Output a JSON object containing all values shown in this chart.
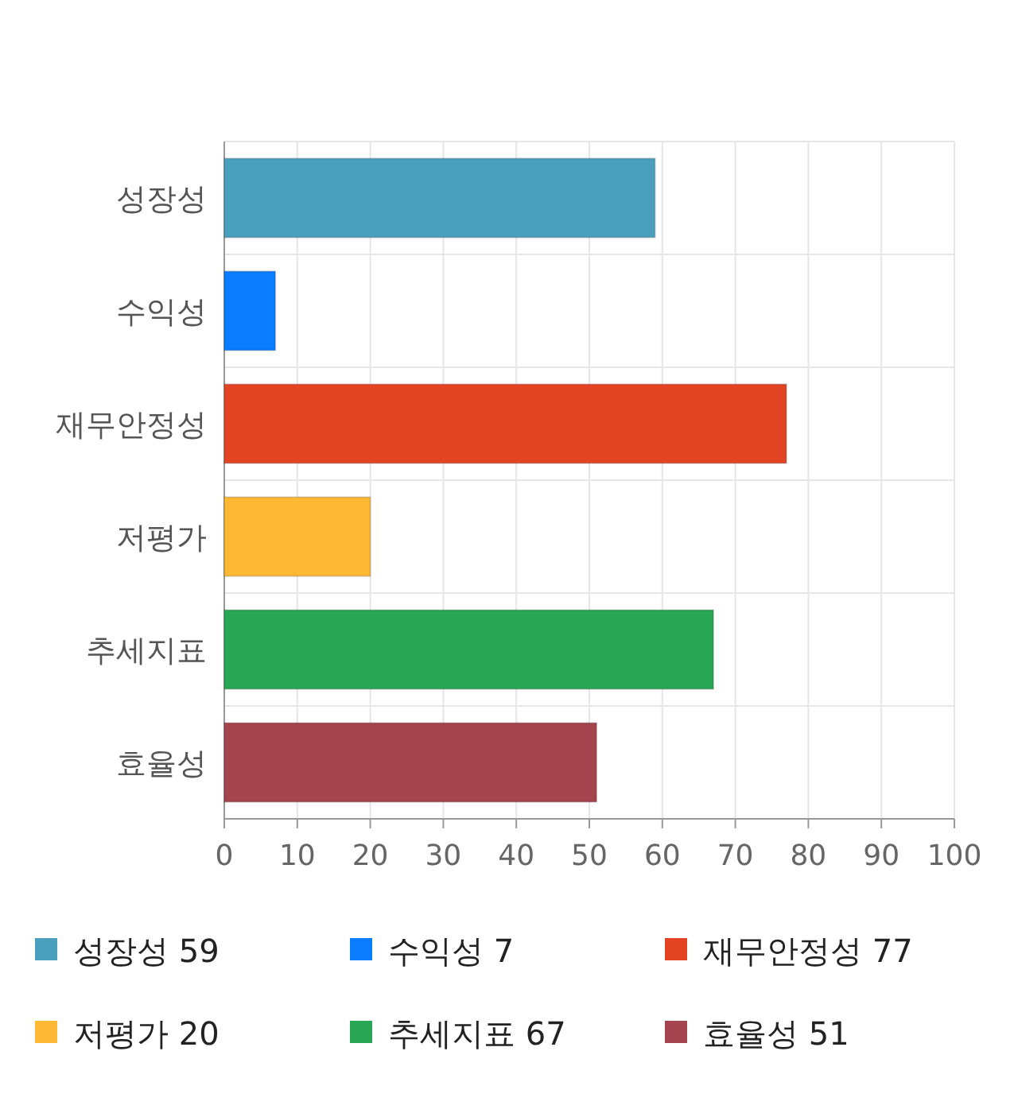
{
  "chart_data": {
    "type": "bar",
    "orientation": "horizontal",
    "stacked": true,
    "categories": [
      "성장성",
      "수익성",
      "재무안정성",
      "저평가",
      "추세지표",
      "효율성"
    ],
    "series": [
      {
        "name": "성장성 59",
        "color": "#4aa0bc",
        "values": [
          59,
          null,
          null,
          null,
          null,
          null
        ]
      },
      {
        "name": "수익성 7",
        "color": "#0a7cff",
        "values": [
          null,
          7,
          null,
          null,
          null,
          null
        ]
      },
      {
        "name": "재무안정성 77",
        "color": "#e34524",
        "values": [
          null,
          null,
          77,
          null,
          null,
          null
        ]
      },
      {
        "name": "저평가 20",
        "color": "#ffb833",
        "values": [
          null,
          null,
          null,
          20,
          null,
          null
        ]
      },
      {
        "name": "추세지표 67",
        "color": "#28a653",
        "values": [
          null,
          null,
          null,
          null,
          67,
          null
        ]
      },
      {
        "name": "효율성 51",
        "color": "#a5434e",
        "values": [
          null,
          null,
          null,
          null,
          null,
          51
        ]
      }
    ],
    "xlim": [
      0,
      100
    ],
    "xticks": [
      0,
      10,
      20,
      30,
      40,
      50,
      60,
      70,
      80,
      90,
      100
    ],
    "grid": true,
    "legend": "bottom"
  }
}
